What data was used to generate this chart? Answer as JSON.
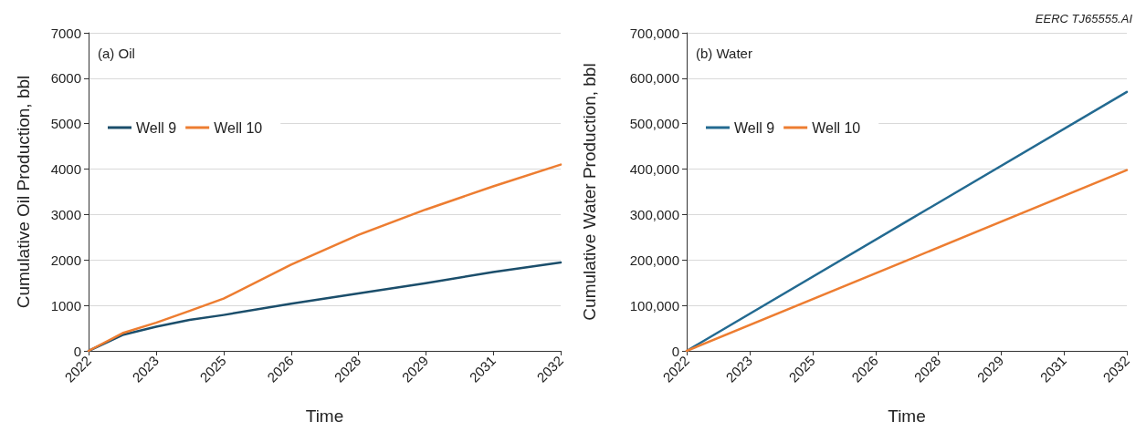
{
  "chart_data": [
    {
      "type": "line",
      "title": "(a) Oil",
      "xlabel": "Time",
      "ylabel": "Cumulative Oil Production, bbl",
      "x": [
        2022,
        2022.72,
        2023.43,
        2024.14,
        2024.86,
        2026.29,
        2027.71,
        2029.14,
        2030.57,
        2032
      ],
      "series": [
        {
          "name": "Well 9",
          "color": "#1b4e6b",
          "values": [
            0,
            350,
            530,
            680,
            790,
            1040,
            1265,
            1490,
            1735,
            1945
          ]
        },
        {
          "name": "Well 10",
          "color": "#ed7d31",
          "values": [
            0,
            390,
            620,
            880,
            1150,
            1900,
            2550,
            3110,
            3620,
            4100
          ]
        }
      ],
      "xlim": [
        2022,
        2032
      ],
      "xticks": [
        {
          "value": 2022,
          "label": "2022"
        },
        {
          "value": 2023.43,
          "label": "2023"
        },
        {
          "value": 2024.86,
          "label": "2025"
        },
        {
          "value": 2026.29,
          "label": "2026"
        },
        {
          "value": 2027.71,
          "label": "2028"
        },
        {
          "value": 2029.14,
          "label": "2029"
        },
        {
          "value": 2030.57,
          "label": "2031"
        },
        {
          "value": 2032,
          "label": "2032"
        }
      ],
      "ylim": [
        0,
        7000
      ],
      "yticks": [
        0,
        1000,
        2000,
        3000,
        4000,
        5000,
        6000,
        7000
      ],
      "grid": "y",
      "legend": "top left",
      "marker": "none",
      "line_style": "solid"
    },
    {
      "type": "line",
      "title": "(b) Water",
      "xlabel": "Time",
      "ylabel": "Cumulative Water Production, bbl",
      "annotations": [
        "EERC TJ65555.AI"
      ],
      "x": [
        2022,
        2027,
        2032
      ],
      "series": [
        {
          "name": "Well 9",
          "color": "#236a91",
          "values": [
            0,
            285000,
            570000
          ]
        },
        {
          "name": "Well 10",
          "color": "#ed7d31",
          "values": [
            0,
            199000,
            398000
          ]
        }
      ],
      "xlim": [
        2022,
        2032
      ],
      "xticks": [
        {
          "value": 2022,
          "label": "2022"
        },
        {
          "value": 2023.43,
          "label": "2023"
        },
        {
          "value": 2024.86,
          "label": "2025"
        },
        {
          "value": 2026.29,
          "label": "2026"
        },
        {
          "value": 2027.71,
          "label": "2028"
        },
        {
          "value": 2029.14,
          "label": "2029"
        },
        {
          "value": 2030.57,
          "label": "2031"
        },
        {
          "value": 2032,
          "label": "2032"
        }
      ],
      "ylim": [
        0,
        700000
      ],
      "yticks": [
        {
          "value": 0,
          "label": "0"
        },
        {
          "value": 100000,
          "label": "100,000"
        },
        {
          "value": 200000,
          "label": "200,000"
        },
        {
          "value": 300000,
          "label": "300,000"
        },
        {
          "value": 400000,
          "label": "400,000"
        },
        {
          "value": 500000,
          "label": "500,000"
        },
        {
          "value": 600000,
          "label": "600,000"
        },
        {
          "value": 700000,
          "label": "700,000"
        }
      ],
      "grid": "y",
      "legend": "top left",
      "marker": "none",
      "line_style": "solid"
    }
  ]
}
